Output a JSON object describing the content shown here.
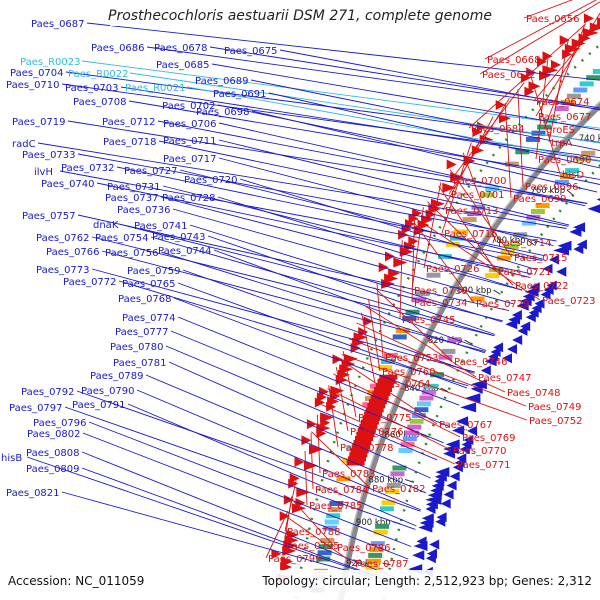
{
  "header": {
    "title": "Prosthecochloris aestuarii DSM 271, complete genome"
  },
  "footer": {
    "accession_text": "Accession: NC_011059",
    "summary_text": "Topology: circular; Length: 2,512,923 bp; Genes: 2,312"
  },
  "colors": {
    "reverse_strand": "#1a1acc",
    "forward_strand": "#dd1111",
    "rna": "#33bbdd",
    "backbone": "#888888",
    "ticks": "#2a8a2a",
    "background": "#ffffff"
  },
  "scale": {
    "ticks": [
      {
        "label": "720 kbp"
      },
      {
        "label": "740 kbp"
      },
      {
        "label": "760 kbp"
      },
      {
        "label": "780 kbp"
      },
      {
        "label": "800 kbp"
      },
      {
        "label": "820 kbp"
      },
      {
        "label": "840 kbp"
      },
      {
        "label": "860 kbp"
      },
      {
        "label": "880 kbp"
      },
      {
        "label": "900 kbp"
      },
      {
        "label": "920 kbp"
      }
    ]
  },
  "left_labels": [
    {
      "name": "Paes_0687",
      "kind": "gene"
    },
    {
      "name": "Paes_0686",
      "kind": "gene"
    },
    {
      "name": "Paes_0678",
      "kind": "gene"
    },
    {
      "name": "Paes_0675",
      "kind": "gene"
    },
    {
      "name": "Paes_R0023",
      "kind": "rna"
    },
    {
      "name": "Paes_0685",
      "kind": "gene"
    },
    {
      "name": "Paes_0704",
      "kind": "gene"
    },
    {
      "name": "Paes_R0022",
      "kind": "rna"
    },
    {
      "name": "Paes_0689",
      "kind": "gene"
    },
    {
      "name": "Paes_0710",
      "kind": "gene"
    },
    {
      "name": "Paes_0703",
      "kind": "gene"
    },
    {
      "name": "Paes_R0021",
      "kind": "rna"
    },
    {
      "name": "Paes_0691",
      "kind": "gene"
    },
    {
      "name": "Paes_0708",
      "kind": "gene"
    },
    {
      "name": "Paes_0702",
      "kind": "gene"
    },
    {
      "name": "Paes_0698",
      "kind": "gene"
    },
    {
      "name": "Paes_0719",
      "kind": "gene"
    },
    {
      "name": "Paes_0712",
      "kind": "gene"
    },
    {
      "name": "Paes_0706",
      "kind": "gene"
    },
    {
      "name": "radC",
      "kind": "gene"
    },
    {
      "name": "Paes_0718",
      "kind": "gene"
    },
    {
      "name": "Paes_0711",
      "kind": "gene"
    },
    {
      "name": "Paes_0733",
      "kind": "gene"
    },
    {
      "name": "Paes_0717",
      "kind": "gene"
    },
    {
      "name": "ilvH",
      "kind": "gene"
    },
    {
      "name": "Paes_0732",
      "kind": "gene"
    },
    {
      "name": "Paes_0727",
      "kind": "gene"
    },
    {
      "name": "Paes_0740",
      "kind": "gene"
    },
    {
      "name": "Paes_0731",
      "kind": "gene"
    },
    {
      "name": "Paes_0720",
      "kind": "gene"
    },
    {
      "name": "Paes_0737",
      "kind": "gene"
    },
    {
      "name": "Paes_0728",
      "kind": "gene"
    },
    {
      "name": "Paes_0736",
      "kind": "gene"
    },
    {
      "name": "Paes_0757",
      "kind": "gene"
    },
    {
      "name": "dnaK",
      "kind": "gene"
    },
    {
      "name": "Paes_0741",
      "kind": "gene"
    },
    {
      "name": "Paes_0762",
      "kind": "gene"
    },
    {
      "name": "Paes_0754",
      "kind": "gene"
    },
    {
      "name": "Paes_0743",
      "kind": "gene"
    },
    {
      "name": "Paes_0766",
      "kind": "gene"
    },
    {
      "name": "Paes_0756",
      "kind": "gene"
    },
    {
      "name": "Paes_0744",
      "kind": "gene"
    },
    {
      "name": "Paes_0773",
      "kind": "gene"
    },
    {
      "name": "Paes_0759",
      "kind": "gene"
    },
    {
      "name": "Paes_0772",
      "kind": "gene"
    },
    {
      "name": "Paes_0765",
      "kind": "gene"
    },
    {
      "name": "Paes_0768",
      "kind": "gene"
    },
    {
      "name": "Paes_0774",
      "kind": "gene"
    },
    {
      "name": "Paes_0777",
      "kind": "gene"
    },
    {
      "name": "Paes_0780",
      "kind": "gene"
    },
    {
      "name": "Paes_0781",
      "kind": "gene"
    },
    {
      "name": "Paes_0789",
      "kind": "gene"
    },
    {
      "name": "Paes_0792",
      "kind": "gene"
    },
    {
      "name": "Paes_0790",
      "kind": "gene"
    },
    {
      "name": "Paes_0797",
      "kind": "gene"
    },
    {
      "name": "Paes_0791",
      "kind": "gene"
    },
    {
      "name": "Paes_0796",
      "kind": "gene"
    },
    {
      "name": "Paes_0802",
      "kind": "gene"
    },
    {
      "name": "hisB",
      "kind": "gene"
    },
    {
      "name": "Paes_0808",
      "kind": "gene"
    },
    {
      "name": "Paes_0809",
      "kind": "gene"
    },
    {
      "name": "Paes_0821",
      "kind": "gene"
    }
  ],
  "right_labels": [
    {
      "name": "Paes_0656"
    },
    {
      "name": "Paes_0668"
    },
    {
      "name": "Paes_0672"
    },
    {
      "name": "Paes_0674"
    },
    {
      "name": "Paes_0677"
    },
    {
      "name": "Paes_0684"
    },
    {
      "name": "groES"
    },
    {
      "name": "trpA"
    },
    {
      "name": "Paes_0690"
    },
    {
      "name": "hisD"
    },
    {
      "name": "Paes_0700"
    },
    {
      "name": "Paes_0696"
    },
    {
      "name": "Paes_0701"
    },
    {
      "name": "Paes_0699"
    },
    {
      "name": "Paes_0713"
    },
    {
      "name": "Paes_0716"
    },
    {
      "name": "Paes_0714"
    },
    {
      "name": "Paes_0715"
    },
    {
      "name": "Paes_0726"
    },
    {
      "name": "Paes_0721"
    },
    {
      "name": "Paes_0722"
    },
    {
      "name": "Paes_0730"
    },
    {
      "name": "Paes_0723"
    },
    {
      "name": "Paes_0734"
    },
    {
      "name": "Paes_0729"
    },
    {
      "name": "Paes_0745"
    },
    {
      "name": "Paes_0753"
    },
    {
      "name": "Paes_0746"
    },
    {
      "name": "Paes_0760"
    },
    {
      "name": "Paes_0747"
    },
    {
      "name": "Paes_0764"
    },
    {
      "name": "Paes_0748"
    },
    {
      "name": "Paes_0749"
    },
    {
      "name": "Paes_0775"
    },
    {
      "name": "Paes_0752"
    },
    {
      "name": "Paes_0767"
    },
    {
      "name": "Paes_0776"
    },
    {
      "name": "Paes_0769"
    },
    {
      "name": "Paes_0778"
    },
    {
      "name": "Paes_0770"
    },
    {
      "name": "Paes_0771"
    },
    {
      "name": "Paes_0783"
    },
    {
      "name": "Paes_0784"
    },
    {
      "name": "Paes_0782"
    },
    {
      "name": "Paes_0785"
    },
    {
      "name": "Paes_0788"
    },
    {
      "name": "Paes_0795"
    },
    {
      "name": "Paes_0786"
    },
    {
      "name": "Paes_0799"
    },
    {
      "name": "Paes_0787"
    }
  ]
}
